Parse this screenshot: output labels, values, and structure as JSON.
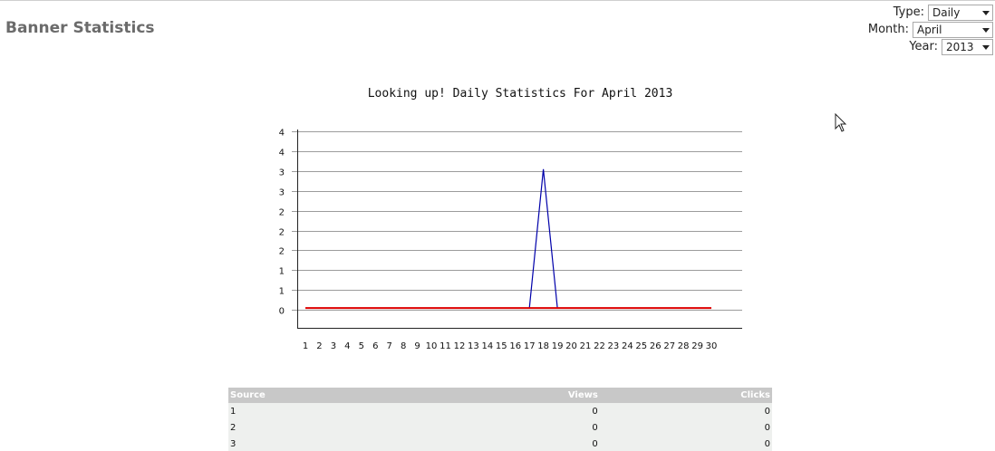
{
  "page": {
    "title": "Banner Statistics"
  },
  "filters": {
    "type_label": "Type:",
    "type_value": "Daily",
    "month_label": "Month:",
    "month_value": "April",
    "year_label": "Year:",
    "year_value": "2013"
  },
  "chart_data": {
    "type": "line",
    "title": "Looking up! Daily Statistics For April 2013",
    "x": [
      1,
      2,
      3,
      4,
      5,
      6,
      7,
      8,
      9,
      10,
      11,
      12,
      13,
      14,
      15,
      16,
      17,
      18,
      19,
      20,
      21,
      22,
      23,
      24,
      25,
      26,
      27,
      28,
      29,
      30
    ],
    "y_tick_labels": [
      "4",
      "4",
      "3",
      "3",
      "2",
      "2",
      "2",
      "1",
      "1",
      "0"
    ],
    "ylim": [
      -0.5,
      4.5
    ],
    "grid": true,
    "series": [
      {
        "color": "#0000aa",
        "values": [
          0,
          0,
          0,
          0,
          0,
          0,
          0,
          0,
          0,
          0,
          0,
          0,
          0,
          0,
          0,
          0,
          0,
          3.5,
          0,
          0,
          0,
          0,
          0,
          0,
          0,
          0,
          0,
          0,
          0,
          0
        ]
      },
      {
        "color": "#dd0000",
        "values": [
          0,
          0,
          0,
          0,
          0,
          0,
          0,
          0,
          0,
          0,
          0,
          0,
          0,
          0,
          0,
          0,
          0,
          0,
          0,
          0,
          0,
          0,
          0,
          0,
          0,
          0,
          0,
          0,
          0,
          0
        ]
      }
    ]
  },
  "table": {
    "headers": [
      "Source",
      "Views",
      "Clicks"
    ],
    "rows": [
      [
        "1",
        "0",
        "0"
      ],
      [
        "2",
        "0",
        "0"
      ],
      [
        "3",
        "0",
        "0"
      ]
    ]
  },
  "icons": {
    "cursor": "mouse-pointer-icon",
    "dropdown": "chevron-down-icon"
  }
}
